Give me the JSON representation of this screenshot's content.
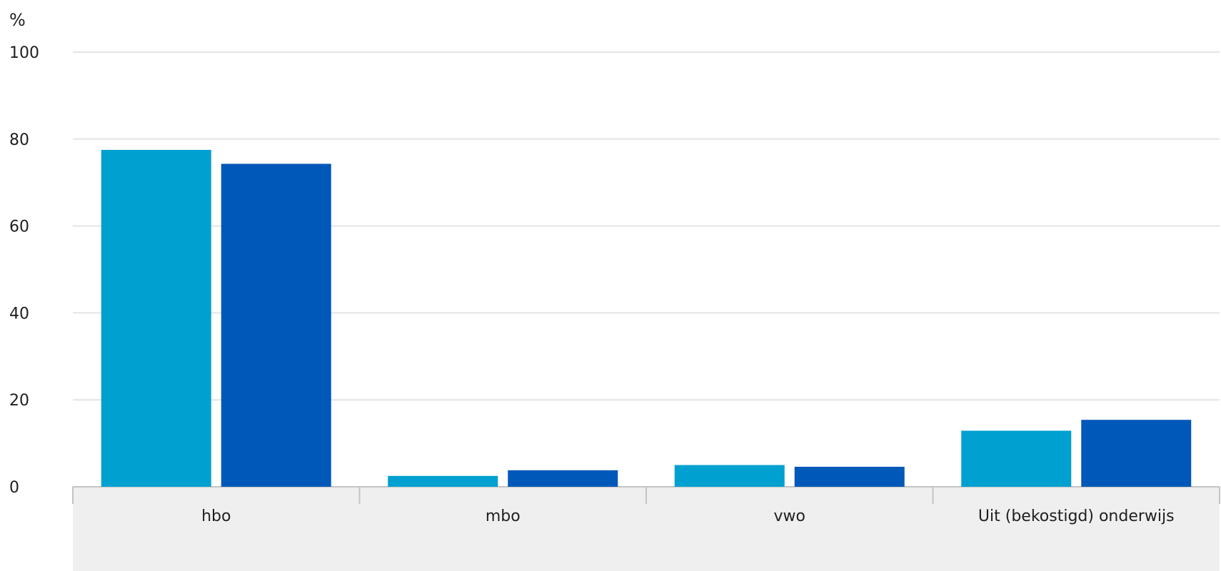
{
  "chart_data": {
    "type": "bar",
    "title": "",
    "ylabel": "%",
    "xlabel": "",
    "ylim": [
      0,
      100
    ],
    "yticks": [
      0,
      20,
      40,
      60,
      80,
      100
    ],
    "grid": true,
    "categories": [
      "hbo",
      "mbo",
      "vwo",
      "Uit (bekostigd) onderwijs"
    ],
    "series": [
      {
        "color": "#00a0d0",
        "values": [
          77.5,
          2.5,
          5.0,
          12.9
        ]
      },
      {
        "color": "#0058b8",
        "values": [
          74.3,
          3.8,
          4.6,
          15.4
        ]
      }
    ]
  }
}
